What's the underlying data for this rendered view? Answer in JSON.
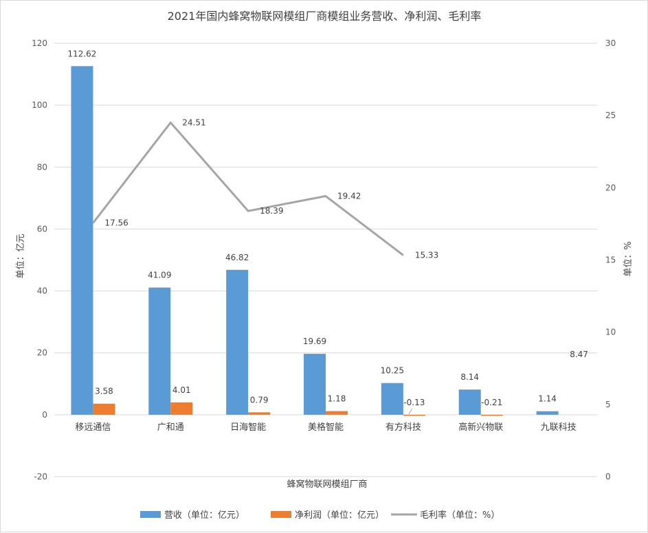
{
  "chart_data": {
    "type": "bar",
    "title": "2021年国内蜂窝物联网模组厂商模组业务营收、净利润、毛利率",
    "xlabel": "蜂窝物联网模组厂商",
    "ylabel": "单位：亿元",
    "y2label": "单位：%",
    "ylim": [
      -20,
      120
    ],
    "y2lim": [
      0,
      30
    ],
    "yticks": [
      "-20",
      "0",
      "20",
      "40",
      "60",
      "80",
      "100",
      "120"
    ],
    "y2ticks": [
      "0",
      "5",
      "10",
      "15",
      "20",
      "25",
      "30"
    ],
    "categories": [
      "移远通信",
      "广和通",
      "日海智能",
      "美格智能",
      "有方科技",
      "高新兴物联",
      "九联科技"
    ],
    "series": [
      {
        "name": "营收（单位：亿元）",
        "type": "bar",
        "axis": "left",
        "color": "#5b9bd5",
        "values": [
          112.62,
          41.09,
          46.82,
          19.69,
          10.25,
          8.14,
          1.14
        ],
        "labels": [
          "112.62",
          "41.09",
          "46.82",
          "19.69",
          "10.25",
          "8.14",
          "1.14"
        ]
      },
      {
        "name": "净利润（单位：亿元）",
        "type": "bar",
        "axis": "left",
        "color": "#ed7d31",
        "values": [
          3.58,
          4.01,
          0.79,
          1.18,
          -0.13,
          -0.21,
          null
        ],
        "labels": [
          "3.58",
          "4.01",
          "0.79",
          "1.18",
          "-0.13",
          "-0.21",
          ""
        ]
      },
      {
        "name": "毛利率（单位：%）",
        "type": "line",
        "axis": "right",
        "color": "#a5a5a5",
        "values": [
          17.56,
          24.51,
          18.39,
          19.42,
          15.33,
          null,
          null
        ],
        "labels": [
          "17.56",
          "24.51",
          "18.39",
          "19.42",
          "15.33",
          "",
          ""
        ]
      }
    ],
    "annotations": [
      {
        "text": "8.47",
        "category": "九联科技",
        "axis": "right",
        "value": 8.47
      }
    ],
    "grid": true,
    "legend": "bottom"
  }
}
